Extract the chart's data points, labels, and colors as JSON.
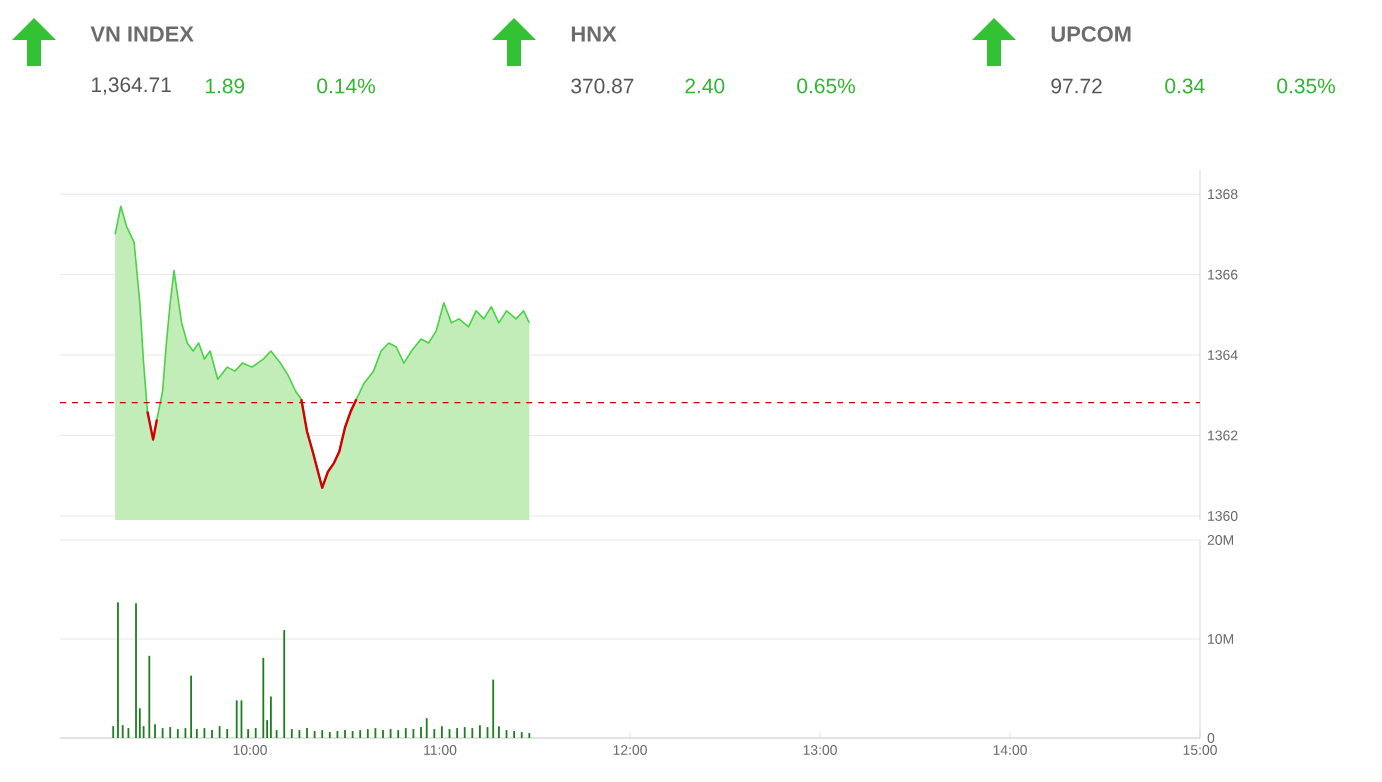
{
  "chart_data": [
    {
      "type": "other",
      "categories": [
        "VN INDEX",
        "HNX",
        "UPCOM"
      ],
      "series": [
        {
          "color": "#555555",
          "values": [
            1364.71,
            370.87,
            97.72
          ],
          "value_labels": [
            "1,364.71",
            "370.87",
            "97.72"
          ]
        },
        {
          "color": "#2fb52f",
          "values": [
            1.89,
            2.4,
            0.34
          ],
          "value_labels": [
            "1.89",
            "2.40",
            "0.34"
          ]
        },
        {
          "color": "#2fb52f",
          "values": [
            0.14,
            0.65,
            0.35
          ],
          "value_labels": [
            "0.14%",
            "0.65%",
            "0.35%"
          ]
        }
      ]
    },
    {
      "type": "area",
      "xlim": [
        9,
        15
      ],
      "ylim": [
        1359.9,
        1368.6
      ],
      "yticks": [
        1360,
        1362,
        1364,
        1366,
        1368
      ],
      "grid": "y",
      "tick_labels": "y",
      "x": [
        9.29,
        9.32,
        9.35,
        9.39,
        9.42,
        9.44,
        9.46,
        9.49,
        9.51,
        9.54,
        9.56,
        9.58,
        9.6,
        9.64,
        9.67,
        9.7,
        9.73,
        9.76,
        9.79,
        9.83,
        9.88,
        9.92,
        9.96,
        10.01,
        10.07,
        10.11,
        10.16,
        10.2,
        10.24,
        10.27,
        10.3,
        10.33,
        10.38,
        10.41,
        10.44,
        10.47,
        10.5,
        10.53,
        10.56,
        10.6,
        10.65,
        10.69,
        10.73,
        10.77,
        10.81,
        10.85,
        10.9,
        10.94,
        10.98,
        11.02,
        11.06,
        11.1,
        11.15,
        11.19,
        11.23,
        11.27,
        11.31,
        11.35,
        11.4,
        11.44,
        11.47
      ],
      "series": [
        {
          "type": "area",
          "color": "#c2edb8",
          "values": [
            1367.0,
            1367.7,
            1367.2,
            1366.8,
            1365.3,
            1363.8,
            1362.6,
            1361.9,
            1362.4,
            1363.1,
            1364.3,
            1365.3,
            1366.1,
            1364.8,
            1364.3,
            1364.1,
            1364.3,
            1363.9,
            1364.1,
            1363.4,
            1363.7,
            1363.6,
            1363.8,
            1363.7,
            1363.9,
            1364.1,
            1363.8,
            1363.5,
            1363.1,
            1362.9,
            1362.1,
            1361.6,
            1360.7,
            1361.1,
            1361.3,
            1361.6,
            1362.2,
            1362.6,
            1362.9,
            1363.3,
            1363.6,
            1364.1,
            1364.3,
            1364.2,
            1363.8,
            1364.1,
            1364.4,
            1364.3,
            1364.6,
            1365.3,
            1364.8,
            1364.9,
            1364.7,
            1365.1,
            1364.9,
            1365.2,
            1364.8,
            1365.1,
            1364.9,
            1365.1,
            1364.8
          ]
        },
        {
          "type": "line",
          "color": "#d40000",
          "values": [
            null,
            null,
            null,
            null,
            null,
            null,
            1362.6,
            1361.9,
            1362.4,
            null,
            null,
            null,
            null,
            null,
            null,
            null,
            null,
            null,
            null,
            null,
            null,
            null,
            null,
            null,
            null,
            null,
            null,
            null,
            null,
            1362.9,
            1362.1,
            1361.6,
            1360.7,
            1361.1,
            1361.3,
            1361.6,
            1362.2,
            1362.6,
            1362.9,
            null,
            null,
            null,
            null,
            null,
            null,
            null,
            null,
            null,
            null,
            null,
            null,
            null,
            null,
            null,
            null,
            null,
            null,
            null,
            null,
            null,
            null
          ]
        }
      ],
      "ref_lines": [
        {
          "axis": "y",
          "value": 1362.82,
          "color": "#cc0000",
          "line_style": "dashed"
        }
      ]
    },
    {
      "type": "bar",
      "color": "#1e7d1e",
      "xlim": [
        9,
        15
      ],
      "ylim": [
        0,
        20
      ],
      "grid": "y",
      "xticks": [
        {
          "value": 10,
          "label": "10:00"
        },
        {
          "value": 11,
          "label": "11:00"
        },
        {
          "value": 12,
          "label": "12:00"
        },
        {
          "value": 13,
          "label": "13:00"
        },
        {
          "value": 14,
          "label": "14:00"
        },
        {
          "value": 15,
          "label": "15:00"
        }
      ],
      "yticks": [
        0,
        {
          "value": 10,
          "label": "10M"
        },
        {
          "value": 20,
          "label": "20M"
        }
      ],
      "x": [
        9.28,
        9.305,
        9.33,
        9.36,
        9.4,
        9.42,
        9.44,
        9.47,
        9.5,
        9.54,
        9.58,
        9.62,
        9.66,
        9.69,
        9.72,
        9.76,
        9.8,
        9.84,
        9.88,
        9.93,
        9.955,
        9.99,
        10.03,
        10.07,
        10.09,
        10.11,
        10.14,
        10.18,
        10.22,
        10.26,
        10.3,
        10.34,
        10.38,
        10.42,
        10.46,
        10.5,
        10.54,
        10.58,
        10.62,
        10.66,
        10.7,
        10.74,
        10.78,
        10.82,
        10.86,
        10.9,
        10.93,
        10.97,
        11.01,
        11.05,
        11.09,
        11.13,
        11.17,
        11.21,
        11.25,
        11.28,
        11.31,
        11.35,
        11.39,
        11.43,
        11.47
      ],
      "values": [
        1.2,
        13.7,
        1.3,
        1.0,
        13.6,
        3.0,
        1.2,
        8.3,
        1.4,
        1.0,
        1.1,
        0.9,
        1.0,
        6.3,
        0.9,
        1.0,
        0.8,
        1.2,
        0.9,
        3.8,
        3.8,
        0.9,
        1.0,
        8.1,
        1.8,
        4.2,
        0.8,
        10.9,
        0.9,
        0.8,
        1.0,
        0.7,
        0.8,
        0.6,
        0.7,
        0.8,
        0.7,
        0.8,
        0.9,
        1.0,
        0.8,
        0.9,
        0.8,
        1.0,
        0.9,
        1.1,
        2.0,
        0.9,
        1.2,
        0.9,
        1.0,
        1.1,
        1.0,
        1.3,
        1.1,
        5.9,
        1.2,
        0.8,
        0.7,
        0.6,
        0.5
      ]
    }
  ]
}
